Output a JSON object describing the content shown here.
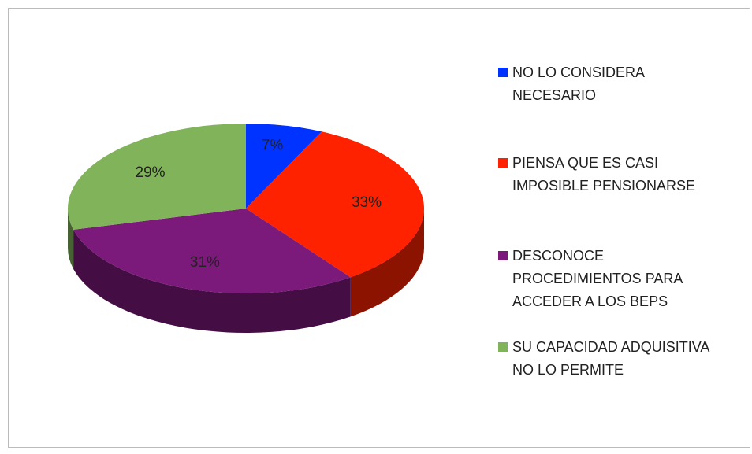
{
  "chart_data": {
    "type": "pie",
    "categories": [
      "NO LO CONSIDERA NECESARIO",
      "PIENSA QUE ES CASI IMPOSIBLE PENSIONARSE",
      "DESCONOCE PROCEDIMIENTOS PARA ACCEDER A LOS BEPS",
      "SU CAPACIDAD ADQUISITIVA NO LO PERMITE"
    ],
    "values": [
      7,
      33,
      31,
      29
    ],
    "value_labels": [
      "7%",
      "33%",
      "31%",
      "29%"
    ],
    "colors": [
      "#0033ff",
      "#ff2200",
      "#7b1a7b",
      "#80b35a"
    ],
    "legend": "right"
  }
}
